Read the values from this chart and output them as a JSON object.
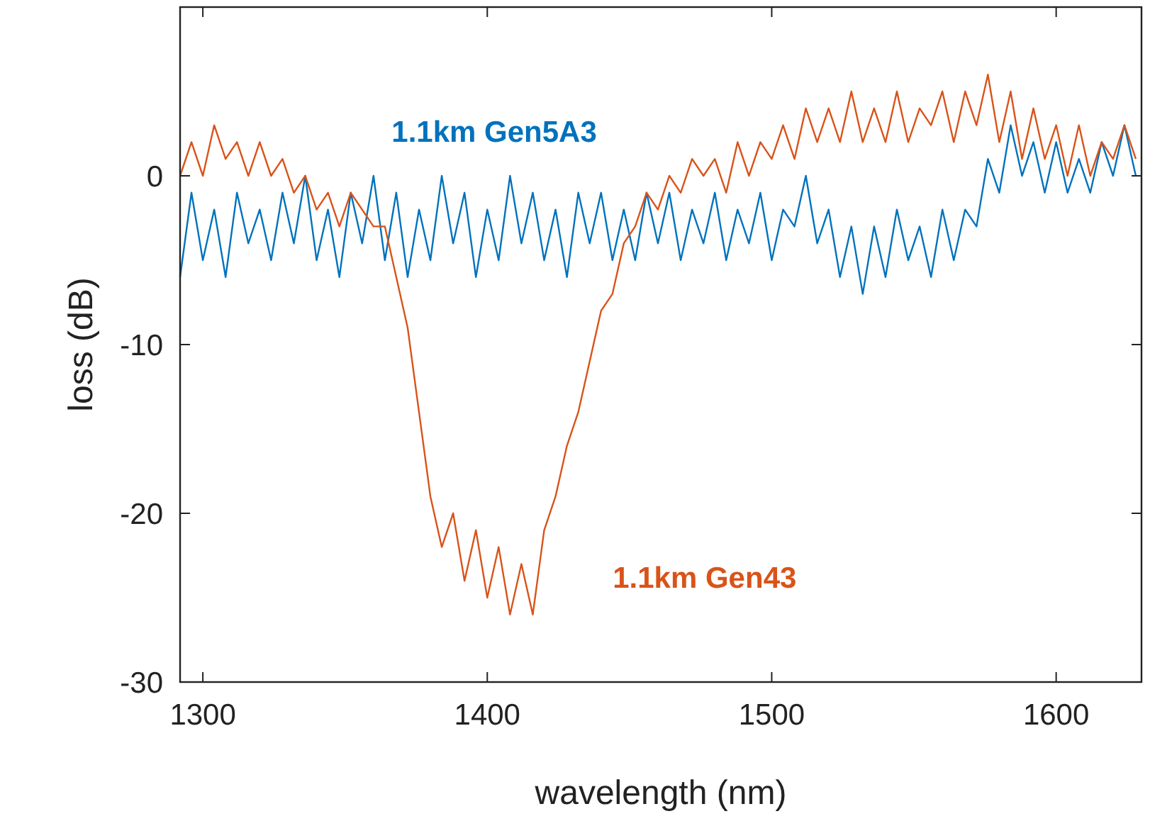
{
  "chart_data": {
    "type": "line",
    "xlabel": "wavelength (nm)",
    "ylabel": "loss (dB)",
    "xlim": [
      1292,
      1630
    ],
    "ylim": [
      -30,
      10
    ],
    "xticks": [
      1300,
      1400,
      1500,
      1600
    ],
    "yticks": [
      -30,
      -20,
      -10,
      0
    ],
    "grid": false,
    "marker": "none",
    "line_style": "solid",
    "x": [
      1292,
      1296,
      1300,
      1304,
      1308,
      1312,
      1316,
      1320,
      1324,
      1328,
      1332,
      1336,
      1340,
      1344,
      1348,
      1352,
      1356,
      1360,
      1364,
      1368,
      1372,
      1376,
      1380,
      1384,
      1388,
      1392,
      1396,
      1400,
      1404,
      1408,
      1412,
      1416,
      1420,
      1424,
      1428,
      1432,
      1436,
      1440,
      1444,
      1448,
      1452,
      1456,
      1460,
      1464,
      1468,
      1472,
      1476,
      1480,
      1484,
      1488,
      1492,
      1496,
      1500,
      1504,
      1508,
      1512,
      1516,
      1520,
      1524,
      1528,
      1532,
      1536,
      1540,
      1544,
      1548,
      1552,
      1556,
      1560,
      1564,
      1568,
      1572,
      1576,
      1580,
      1584,
      1588,
      1592,
      1596,
      1600,
      1604,
      1608,
      1612,
      1616,
      1620,
      1624,
      1628
    ],
    "series": [
      {
        "name": "1.1km Gen5A3",
        "color": "#0072bd",
        "values": [
          -6,
          -1,
          -5,
          -2,
          -6,
          -1,
          -4,
          -2,
          -5,
          -1,
          -4,
          0,
          -5,
          -2,
          -6,
          -1,
          -4,
          0,
          -5,
          -1,
          -6,
          -2,
          -5,
          0,
          -4,
          -1,
          -6,
          -2,
          -5,
          0,
          -4,
          -1,
          -5,
          -2,
          -6,
          -1,
          -4,
          -1,
          -5,
          -2,
          -5,
          -1,
          -4,
          -1,
          -5,
          -2,
          -4,
          -1,
          -5,
          -2,
          -4,
          -1,
          -5,
          -2,
          -3,
          0,
          -4,
          -2,
          -6,
          -3,
          -7,
          -3,
          -6,
          -2,
          -5,
          -3,
          -6,
          -2,
          -5,
          -2,
          -3,
          1,
          -1,
          3,
          0,
          2,
          -1,
          2,
          -1,
          1,
          -1,
          2,
          0,
          3,
          0
        ]
      },
      {
        "name": "1.1km Gen43",
        "color": "#d95319",
        "values": [
          0,
          2,
          0,
          3,
          1,
          2,
          0,
          2,
          0,
          1,
          -1,
          0,
          -2,
          -1,
          -3,
          -1,
          -2,
          -3,
          -3,
          -6,
          -9,
          -14,
          -19,
          -22,
          -20,
          -24,
          -21,
          -25,
          -22,
          -26,
          -23,
          -26,
          -21,
          -19,
          -16,
          -14,
          -11,
          -8,
          -7,
          -4,
          -3,
          -1,
          -2,
          0,
          -1,
          1,
          0,
          1,
          -1,
          2,
          0,
          2,
          1,
          3,
          1,
          4,
          2,
          4,
          2,
          5,
          2,
          4,
          2,
          5,
          2,
          4,
          3,
          5,
          2,
          5,
          3,
          6,
          2,
          5,
          1,
          4,
          1,
          3,
          0,
          3,
          0,
          2,
          1,
          3,
          1
        ]
      }
    ]
  }
}
